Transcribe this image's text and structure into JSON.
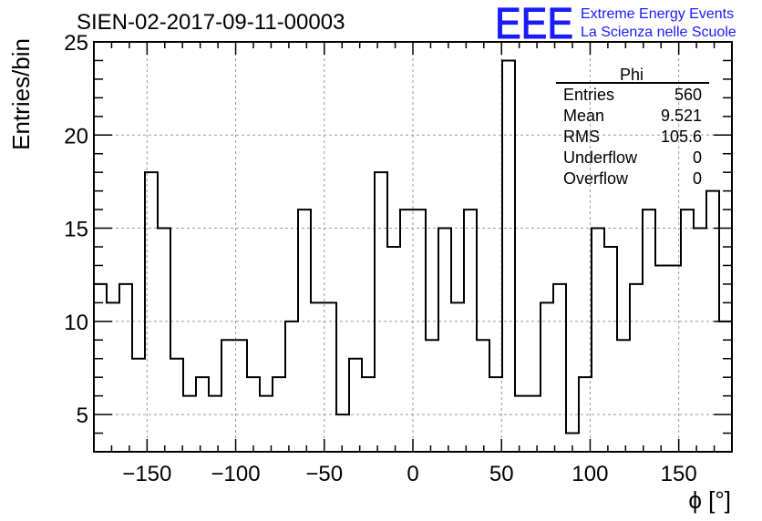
{
  "header": {
    "title": "SIEN-02-2017-09-11-00003"
  },
  "logo": {
    "mark": "EEE",
    "line1": "Extreme Energy Events",
    "line2": "La Scienza nelle Scuole",
    "color": "#1a1aff"
  },
  "stats_box": {
    "title": "Phi",
    "rows": [
      {
        "label": "Entries",
        "value": "560"
      },
      {
        "label": "Mean",
        "value": "9.521"
      },
      {
        "label": "RMS",
        "value": "105.6"
      },
      {
        "label": "Underflow",
        "value": "0"
      },
      {
        "label": "Overflow",
        "value": "0"
      }
    ]
  },
  "chart_data": {
    "type": "histogram",
    "xlabel": "ϕ [°]",
    "ylabel": "Entries/bin",
    "xlim": [
      -180,
      180
    ],
    "ylim": [
      3,
      25
    ],
    "bin_width": 7.2,
    "x_ticks": [
      -150,
      -100,
      -50,
      0,
      50,
      100,
      150
    ],
    "x_tick_labels": [
      "−150",
      "−100",
      "−50",
      "0",
      "50",
      "100",
      "150"
    ],
    "y_ticks": [
      5,
      10,
      15,
      20,
      25
    ],
    "y_tick_labels": [
      "5",
      "10",
      "15",
      "20",
      "25"
    ],
    "grid": true,
    "values": [
      12,
      11,
      12,
      8,
      18,
      15,
      8,
      6,
      7,
      6,
      9,
      9,
      7,
      6,
      7,
      10,
      16,
      11,
      11,
      5,
      8,
      7,
      18,
      14,
      16,
      16,
      9,
      15,
      11,
      16,
      9,
      7,
      24,
      6,
      6,
      11,
      12,
      4,
      7,
      15,
      14,
      9,
      12,
      16,
      13,
      13,
      16,
      15,
      17,
      10
    ],
    "line_color": "#000000"
  }
}
